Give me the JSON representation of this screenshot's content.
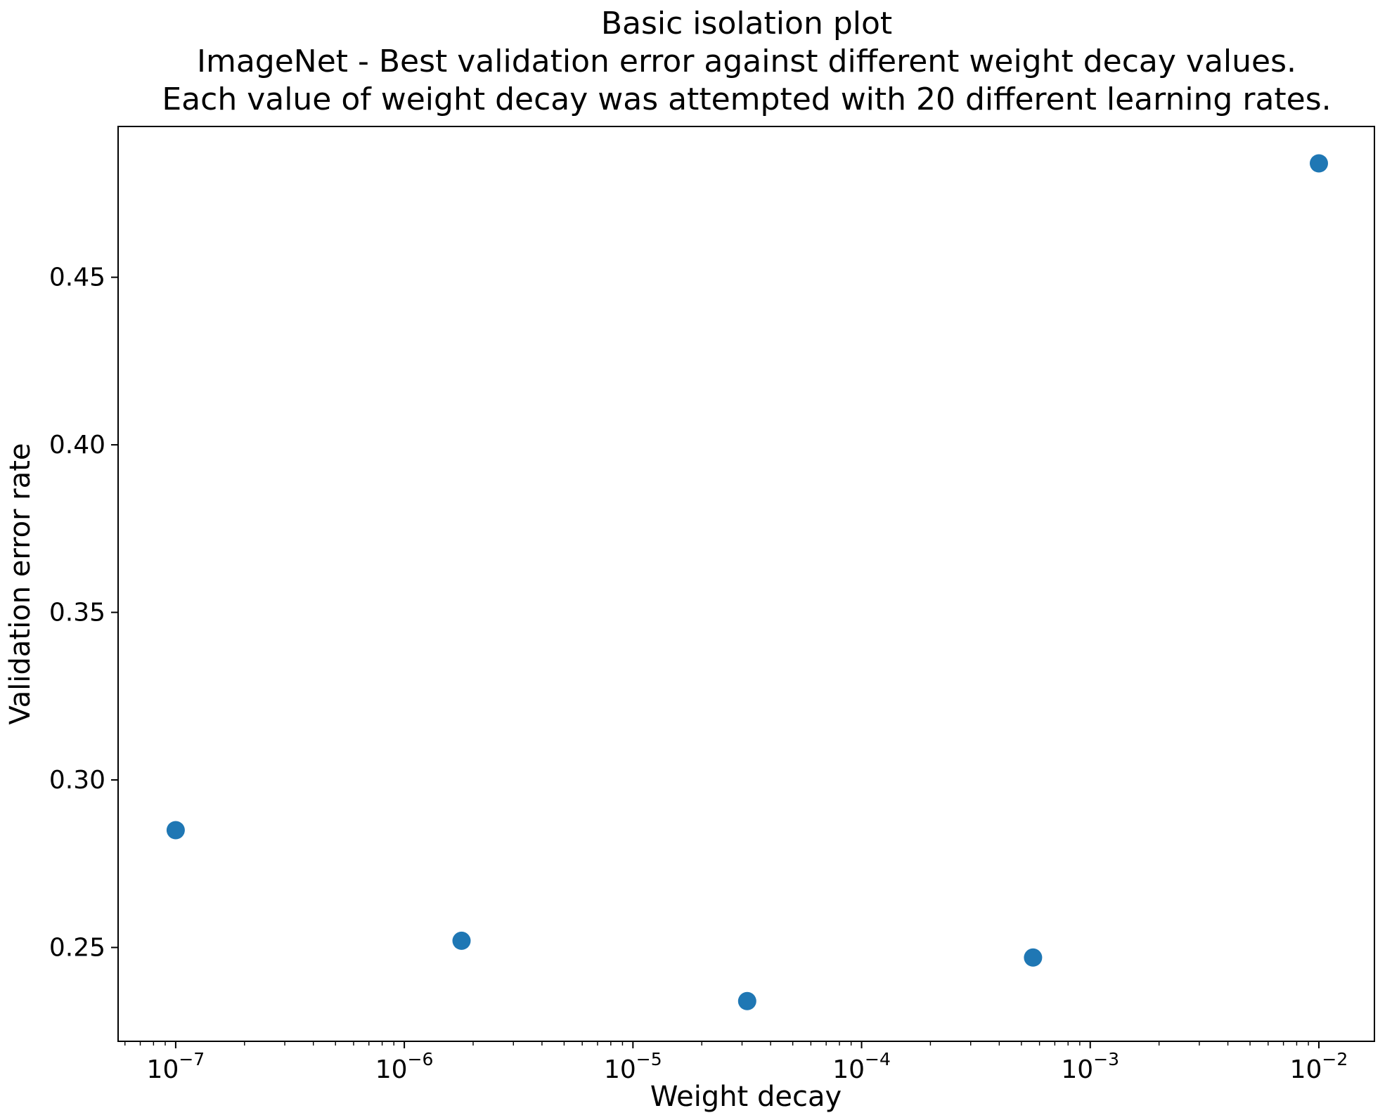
{
  "chart_data": {
    "type": "scatter",
    "title": "Basic isolation plot\nImageNet - Best validation error against different weight decay values.\nEach value of weight decay was attempted with 20 different learning rates.",
    "title_lines": [
      "Basic isolation plot",
      "ImageNet - Best validation error against different weight decay values.",
      "Each value of weight decay was attempted with 20 different learning rates."
    ],
    "xlabel": "Weight decay",
    "ylabel": "Validation error rate",
    "x_scale": "log",
    "xlim": [
      5.6e-08,
      0.0175
    ],
    "ylim": [
      0.222,
      0.495
    ],
    "x_tick_exponents": [
      -7,
      -6,
      -5,
      -4,
      -3,
      -2
    ],
    "x_tick_labels": [
      "10⁻⁷",
      "10⁻⁶",
      "10⁻⁵",
      "10⁻⁴",
      "10⁻³",
      "10⁻²"
    ],
    "y_ticks": [
      0.25,
      0.3,
      0.35,
      0.4,
      0.45
    ],
    "y_tick_labels": [
      "0.25",
      "0.30",
      "0.35",
      "0.40",
      "0.45"
    ],
    "grid": false,
    "legend": null,
    "marker_color": "#1f77b4",
    "points": [
      {
        "x": 1e-07,
        "y": 0.285
      },
      {
        "x": 1.78e-06,
        "y": 0.252
      },
      {
        "x": 3.16e-05,
        "y": 0.234
      },
      {
        "x": 0.000562,
        "y": 0.247
      },
      {
        "x": 0.01,
        "y": 0.484
      }
    ]
  }
}
